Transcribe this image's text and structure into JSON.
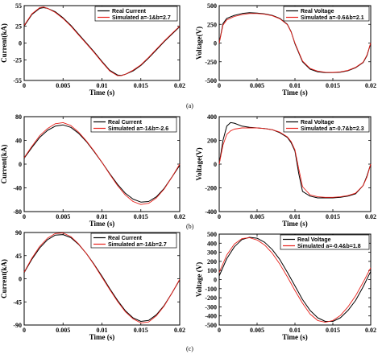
{
  "captions": [
    "(a)",
    "(b)",
    "(c)"
  ],
  "colors": {
    "real": "#000000",
    "simulated": "#e8201a"
  },
  "chart_data": [
    {
      "type": "line",
      "panel": "a-current",
      "xlabel": "Time (s)",
      "ylabel": "Current(kA)",
      "xlim": [
        0,
        0.02
      ],
      "ylim": [
        -55,
        55
      ],
      "xticks": [
        "0",
        "0.005",
        "0.01",
        "0.015",
        "0.02"
      ],
      "yticks": [
        "55",
        "25",
        "0",
        "-25",
        "-55"
      ],
      "yticks_values": [
        55,
        25,
        0,
        -25,
        -55
      ],
      "series": [
        {
          "name": "Real Current",
          "color": "#000000",
          "x": [
            0,
            0.001,
            0.002,
            0.0025,
            0.003,
            0.004,
            0.005,
            0.006,
            0.007,
            0.008,
            0.009,
            0.01,
            0.011,
            0.012,
            0.0125,
            0.013,
            0.014,
            0.015,
            0.016,
            0.017,
            0.018,
            0.019,
            0.02
          ],
          "y": [
            25,
            42,
            51,
            52,
            51,
            46,
            37,
            26,
            13,
            0,
            -13,
            -27,
            -40,
            -47,
            -47.5,
            -46,
            -41,
            -33,
            -22,
            -10,
            2,
            13,
            24
          ]
        },
        {
          "name": "Simulated a=-1&b=2.7",
          "color": "#e8201a",
          "x": [
            0,
            0.001,
            0.002,
            0.0025,
            0.003,
            0.004,
            0.005,
            0.006,
            0.007,
            0.008,
            0.009,
            0.01,
            0.011,
            0.012,
            0.0125,
            0.013,
            0.014,
            0.015,
            0.016,
            0.017,
            0.018,
            0.019,
            0.02
          ],
          "y": [
            26,
            43,
            52,
            53,
            51,
            45,
            36,
            25,
            12,
            -1,
            -14,
            -28,
            -41,
            -48,
            -48,
            -46,
            -40,
            -32,
            -21,
            -9,
            3,
            14,
            25
          ]
        }
      ]
    },
    {
      "type": "line",
      "panel": "a-voltage",
      "xlabel": "Time (s)",
      "ylabel": "Voltage(V)",
      "xlim": [
        0,
        0.02
      ],
      "ylim": [
        -500,
        500
      ],
      "xticks": [
        "0",
        "0.005",
        "0.01",
        "0.015",
        "0.02"
      ],
      "yticks": [
        "500",
        "250",
        "0",
        "-250",
        "-500"
      ],
      "yticks_values": [
        500,
        250,
        0,
        -250,
        -500
      ],
      "series": [
        {
          "name": "Real Voltage",
          "color": "#000000",
          "x": [
            0,
            0.0005,
            0.001,
            0.002,
            0.003,
            0.004,
            0.005,
            0.006,
            0.007,
            0.008,
            0.009,
            0.0095,
            0.01,
            0.011,
            0.012,
            0.013,
            0.014,
            0.015,
            0.016,
            0.017,
            0.018,
            0.019,
            0.0195,
            0.02
          ],
          "y": [
            0,
            260,
            330,
            370,
            395,
            405,
            400,
            390,
            370,
            330,
            250,
            150,
            -10,
            -250,
            -350,
            -385,
            -395,
            -395,
            -390,
            -370,
            -330,
            -260,
            -170,
            0
          ]
        },
        {
          "name": "Simulated a=-0.6&b=2.1",
          "color": "#e8201a",
          "x": [
            0,
            0.0005,
            0.001,
            0.002,
            0.003,
            0.004,
            0.005,
            0.006,
            0.007,
            0.008,
            0.009,
            0.0095,
            0.01,
            0.011,
            0.012,
            0.013,
            0.014,
            0.015,
            0.016,
            0.017,
            0.018,
            0.019,
            0.0195,
            0.02
          ],
          "y": [
            0,
            240,
            310,
            355,
            380,
            395,
            395,
            385,
            365,
            325,
            245,
            145,
            0,
            -240,
            -340,
            -375,
            -390,
            -392,
            -385,
            -365,
            -325,
            -255,
            -160,
            0
          ]
        }
      ]
    },
    {
      "type": "line",
      "panel": "b-current",
      "xlabel": "Time (s)",
      "ylabel": "Current(kA)",
      "xlim": [
        0,
        0.02
      ],
      "ylim": [
        -80,
        80
      ],
      "xticks": [
        "0",
        "0.005",
        "0.01",
        "0.015",
        "0.02"
      ],
      "yticks": [
        "80",
        "40",
        "0",
        "-40",
        "-80"
      ],
      "yticks_values": [
        80,
        40,
        0,
        -40,
        -80
      ],
      "series": [
        {
          "name": "Real Current",
          "color": "#000000",
          "x": [
            0,
            0.001,
            0.002,
            0.003,
            0.004,
            0.005,
            0.006,
            0.007,
            0.008,
            0.009,
            0.01,
            0.011,
            0.012,
            0.013,
            0.014,
            0.015,
            0.016,
            0.017,
            0.018,
            0.019,
            0.02
          ],
          "y": [
            10,
            28,
            45,
            57,
            64,
            66,
            62,
            52,
            38,
            21,
            3,
            -16,
            -34,
            -49,
            -59,
            -64,
            -63,
            -55,
            -41,
            -22,
            -2
          ]
        },
        {
          "name": "Simulated a=-1&b=-2.6",
          "color": "#e8201a",
          "x": [
            0,
            0.001,
            0.002,
            0.003,
            0.004,
            0.005,
            0.006,
            0.007,
            0.008,
            0.009,
            0.01,
            0.011,
            0.012,
            0.013,
            0.014,
            0.015,
            0.016,
            0.017,
            0.018,
            0.019,
            0.02
          ],
          "y": [
            11,
            30,
            48,
            60,
            68,
            70,
            65,
            54,
            39,
            22,
            3,
            -17,
            -36,
            -52,
            -63,
            -68,
            -66,
            -57,
            -42,
            -22,
            0
          ]
        }
      ]
    },
    {
      "type": "line",
      "panel": "b-voltage",
      "xlabel": "Time (s)",
      "ylabel": "Voltage(V)",
      "xlim": [
        0,
        0.02
      ],
      "ylim": [
        -400,
        400
      ],
      "xticks": [
        "0",
        "0.005",
        "0.01",
        "0.015",
        "0.02"
      ],
      "yticks": [
        "400",
        "200",
        "0",
        "-200",
        "-400"
      ],
      "yticks_values": [
        400,
        200,
        0,
        -200,
        -400
      ],
      "series": [
        {
          "name": "Real Voltage",
          "color": "#000000",
          "x": [
            0,
            0.0005,
            0.001,
            0.0015,
            0.002,
            0.003,
            0.004,
            0.005,
            0.006,
            0.007,
            0.008,
            0.009,
            0.0095,
            0.01,
            0.0105,
            0.011,
            0.012,
            0.013,
            0.014,
            0.015,
            0.016,
            0.017,
            0.018,
            0.019,
            0.0195,
            0.02
          ],
          "y": [
            0,
            200,
            320,
            350,
            345,
            320,
            310,
            305,
            300,
            290,
            265,
            225,
            180,
            110,
            -80,
            -230,
            -270,
            -285,
            -285,
            -285,
            -280,
            -270,
            -250,
            -180,
            -100,
            0
          ]
        },
        {
          "name": "Simulated a=-0.7&b=2.3",
          "color": "#e8201a",
          "x": [
            0,
            0.0005,
            0.001,
            0.0015,
            0.002,
            0.003,
            0.004,
            0.005,
            0.006,
            0.007,
            0.008,
            0.009,
            0.0095,
            0.01,
            0.0105,
            0.011,
            0.012,
            0.013,
            0.014,
            0.015,
            0.016,
            0.017,
            0.018,
            0.019,
            0.0195,
            0.02
          ],
          "y": [
            0,
            160,
            250,
            280,
            295,
            305,
            305,
            305,
            300,
            290,
            270,
            230,
            190,
            120,
            -40,
            -190,
            -260,
            -275,
            -280,
            -280,
            -275,
            -265,
            -245,
            -180,
            -110,
            0
          ]
        }
      ]
    },
    {
      "type": "line",
      "panel": "c-current",
      "xlabel": "Time (s)",
      "ylabel": "Current(kA)",
      "xlim": [
        0,
        0.02
      ],
      "ylim": [
        -90,
        90
      ],
      "xticks": [
        "0",
        "0.005",
        "0.01",
        "0.015",
        "0.02"
      ],
      "yticks": [
        "90",
        "45",
        "0",
        "-45",
        "-90"
      ],
      "yticks_values": [
        90,
        45,
        0,
        -45,
        -90
      ],
      "series": [
        {
          "name": "Real Current",
          "color": "#000000",
          "x": [
            0,
            0.001,
            0.002,
            0.003,
            0.004,
            0.005,
            0.006,
            0.007,
            0.008,
            0.009,
            0.01,
            0.011,
            0.012,
            0.013,
            0.014,
            0.015,
            0.016,
            0.017,
            0.018,
            0.019,
            0.02
          ],
          "y": [
            12,
            38,
            60,
            76,
            85,
            86,
            80,
            67,
            49,
            28,
            5,
            -19,
            -42,
            -62,
            -76,
            -83,
            -81,
            -70,
            -52,
            -28,
            -2
          ]
        },
        {
          "name": "Simulated a=-1&b=2.7",
          "color": "#e8201a",
          "x": [
            0,
            0.001,
            0.002,
            0.003,
            0.004,
            0.005,
            0.006,
            0.007,
            0.008,
            0.009,
            0.01,
            0.011,
            0.012,
            0.013,
            0.014,
            0.015,
            0.016,
            0.017,
            0.018,
            0.019,
            0.02
          ],
          "y": [
            13,
            40,
            63,
            79,
            88,
            89,
            82,
            68,
            49,
            27,
            3,
            -21,
            -44,
            -64,
            -78,
            -86,
            -84,
            -72,
            -53,
            -28,
            -1
          ]
        }
      ]
    },
    {
      "type": "line",
      "panel": "c-voltage",
      "xlabel": "Time (s)",
      "ylabel": "Voltage (V)",
      "xlim": [
        0,
        0.02
      ],
      "ylim": [
        -500,
        500
      ],
      "xticks": [
        "0",
        "0.005",
        "0.01",
        "0.015",
        "0.02"
      ],
      "yticks": [
        "500",
        "400",
        "300",
        "200",
        "100",
        "0",
        "-100",
        "-200",
        "-300",
        "-400",
        "-500"
      ],
      "yticks_values": [
        500,
        400,
        300,
        200,
        100,
        0,
        -100,
        -200,
        -300,
        -400,
        -500
      ],
      "series": [
        {
          "name": "Real Voltage",
          "color": "#000000",
          "x": [
            0,
            0.001,
            0.002,
            0.003,
            0.004,
            0.005,
            0.006,
            0.007,
            0.008,
            0.009,
            0.01,
            0.011,
            0.012,
            0.013,
            0.014,
            0.015,
            0.016,
            0.017,
            0.018,
            0.019,
            0.02
          ],
          "y": [
            40,
            230,
            360,
            440,
            465,
            455,
            410,
            330,
            220,
            80,
            -70,
            -220,
            -340,
            -420,
            -460,
            -460,
            -420,
            -340,
            -230,
            -80,
            90
          ]
        },
        {
          "name": "Simulated a=-0.4&b=1.8",
          "color": "#e8201a",
          "x": [
            0,
            0.001,
            0.002,
            0.003,
            0.004,
            0.005,
            0.006,
            0.007,
            0.008,
            0.009,
            0.01,
            0.011,
            0.012,
            0.013,
            0.014,
            0.015,
            0.016,
            0.017,
            0.018,
            0.019,
            0.02
          ],
          "y": [
            80,
            270,
            390,
            450,
            460,
            435,
            380,
            290,
            170,
            30,
            -120,
            -260,
            -380,
            -450,
            -470,
            -450,
            -395,
            -300,
            -180,
            -30,
            130
          ]
        }
      ]
    }
  ]
}
